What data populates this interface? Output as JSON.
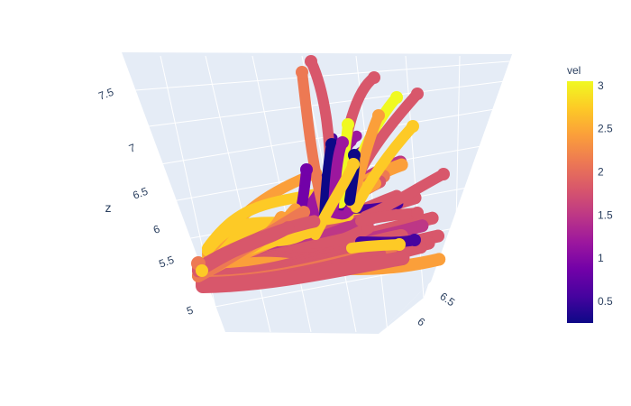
{
  "chart_data": {
    "type": "streamtube",
    "title": "",
    "colorbar": {
      "title": "vel",
      "colorscale": [
        "#0d0887",
        "#46039f",
        "#7201a8",
        "#9c179e",
        "#bd3786",
        "#d8576b",
        "#ed7953",
        "#fb9f3a",
        "#fdca26",
        "#f0f921"
      ],
      "range": [
        0.25,
        3.05
      ],
      "ticks": [
        "0.5",
        "1",
        "1.5",
        "2",
        "2.5",
        "3"
      ]
    },
    "scene": {
      "background": "#e5ecf6",
      "gridcolor": "#ffffff",
      "zaxis": {
        "title": "z",
        "ticks": [
          "5",
          "5.5",
          "6",
          "6.5",
          "7",
          "7.5"
        ]
      },
      "xaxis": {
        "title": "",
        "ticks": [
          "6",
          "6.5"
        ]
      }
    }
  }
}
